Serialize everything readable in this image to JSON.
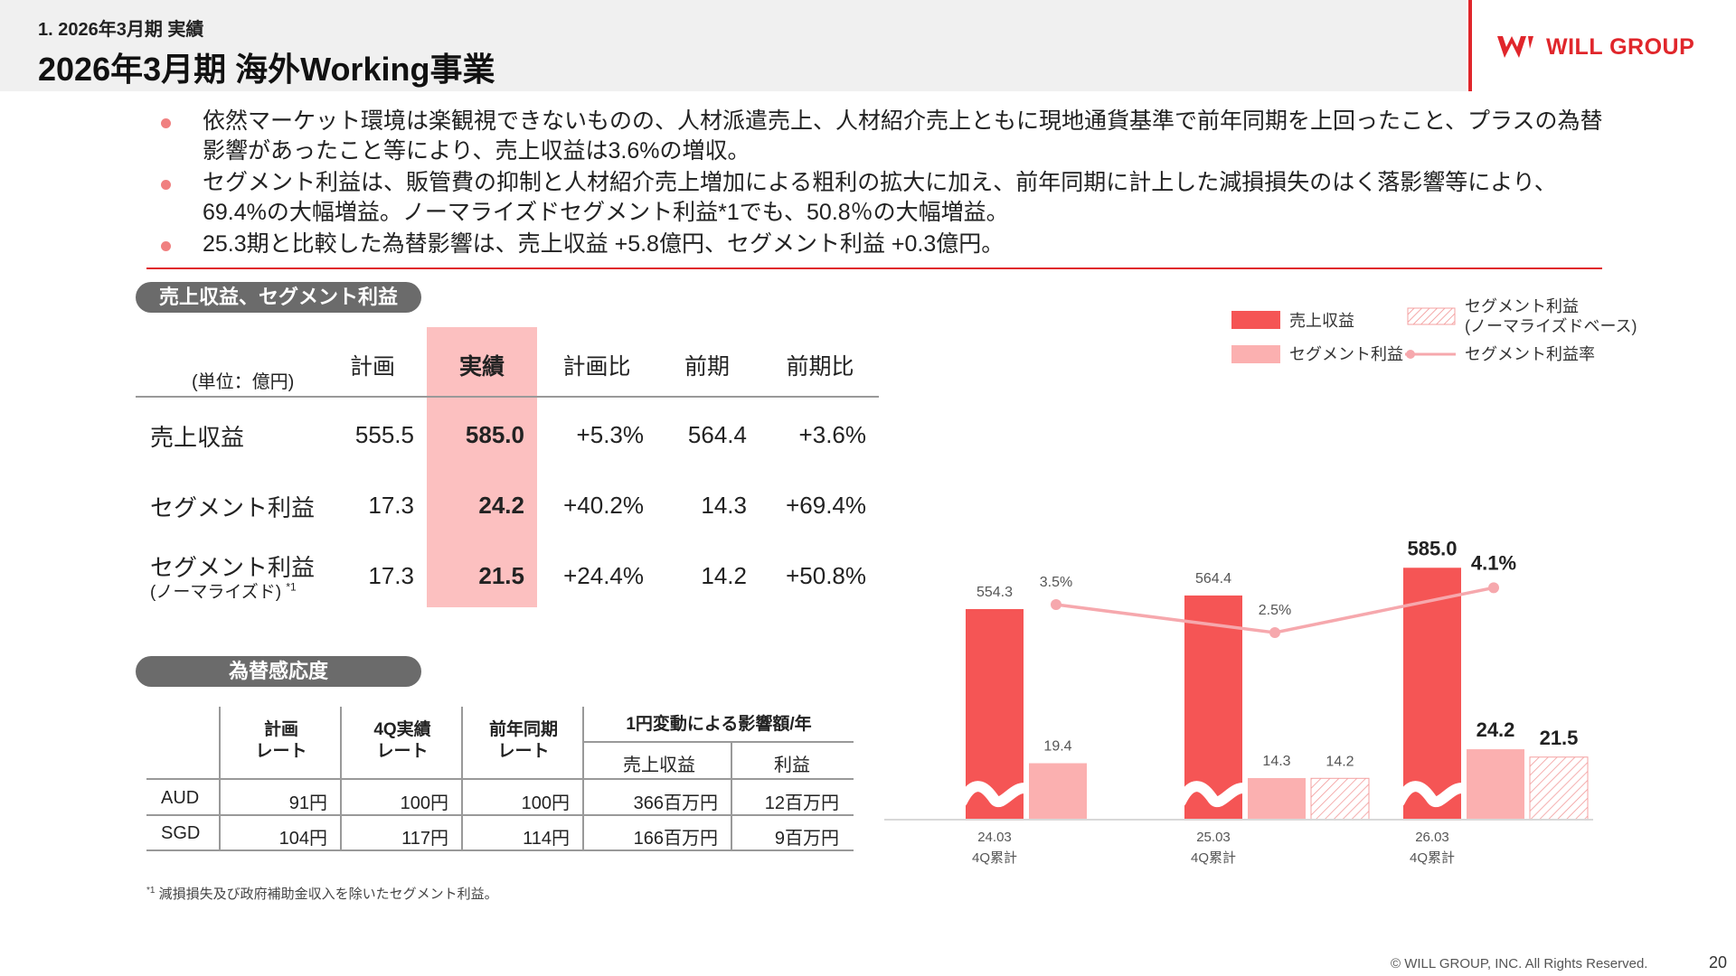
{
  "header": {
    "section": "1. 2026年3月期 実績",
    "title": "2026年3月期 海外Working事業",
    "logo_text": "WILL GROUP"
  },
  "bullets": [
    "依然マーケット環境は楽観視できないものの、人材派遣売上、人材紹介売上ともに現地通貨基準で前年同期を上回ったこと、プラスの為替影響があったこと等により、売上収益は3.6%の増収。",
    "セグメント利益は、販管費の抑制と人材紹介売上増加による粗利の拡大に加え、前年同期に計上した減損損失のはく落影響等により、69.4%の大幅増益。ノーマライズドセグメント利益*1でも、50.8％の大幅増益。",
    "25.3期と比較した為替影響は、売上収益 +5.8億円、セグメント利益 +0.3億円。"
  ],
  "main_table": {
    "pill": "売上収益、セグメント利益",
    "unit": "(単位：億円)",
    "headers": [
      "計画",
      "実績",
      "計画比",
      "前期",
      "前期比"
    ],
    "rows": [
      {
        "label": "売上収益",
        "sub": "",
        "plan": "555.5",
        "actual": "585.0",
        "vs_plan": "+5.3%",
        "prev": "564.4",
        "vs_prev": "+3.6%"
      },
      {
        "label": "セグメント利益",
        "sub": "",
        "plan": "17.3",
        "actual": "24.2",
        "vs_plan": "+40.2%",
        "prev": "14.3",
        "vs_prev": "+69.4%"
      },
      {
        "label": "セグメント利益",
        "sub": "(ノーマライズド)",
        "sub_note": "*1",
        "plan": "17.3",
        "actual": "21.5",
        "vs_plan": "+24.4%",
        "prev": "14.2",
        "vs_prev": "+50.8%"
      }
    ]
  },
  "fx_table": {
    "pill": "為替感応度",
    "headers": {
      "plan_rate": [
        "計画",
        "レート"
      ],
      "q4_rate": [
        "4Q実績",
        "レート"
      ],
      "prev_rate": [
        "前年同期",
        "レート"
      ],
      "impact": "1円変動による影響額/年",
      "revenue": "売上収益",
      "profit": "利益"
    },
    "rows": [
      {
        "currency": "AUD",
        "plan": "91円",
        "q4": "100円",
        "prev": "100円",
        "revenue": "366百万円",
        "profit": "12百万円"
      },
      {
        "currency": "SGD",
        "plan": "104円",
        "q4": "117円",
        "prev": "114円",
        "revenue": "166百万円",
        "profit": "9百万円"
      }
    ]
  },
  "footnote": {
    "mark": "*1",
    "text": "減損損失及び政府補助金収入を除いたセグメント利益。"
  },
  "footer": {
    "copyright": "© WILL GROUP, INC. All Rights Reserved.",
    "page": "20"
  },
  "colors": {
    "accent": "#e0262b",
    "revenue": "#f55555",
    "profit": "#fbb0b0",
    "normalized": "#f7c4c4",
    "margin_line": "#f6a8ad"
  },
  "chart_data": {
    "type": "bar",
    "categories": [
      "24.03\n4Q累計",
      "25.03\n4Q累計",
      "26.03\n4Q累計"
    ],
    "category_lines": [
      [
        "24.03",
        "4Q累計"
      ],
      [
        "25.03",
        "4Q累計"
      ],
      [
        "26.03",
        "4Q累計"
      ]
    ],
    "axis_break": true,
    "series": [
      {
        "name": "売上収益",
        "values": [
          554.3,
          564.4,
          585.0
        ],
        "labels": [
          "554.3",
          "564.4",
          "585.0"
        ]
      },
      {
        "name": "セグメント利益",
        "values": [
          19.4,
          14.3,
          24.2
        ],
        "labels": [
          "19.4",
          "14.3",
          "24.2"
        ]
      },
      {
        "name": "セグメント利益(ノーマライズドベース)",
        "values": [
          null,
          14.2,
          21.5
        ],
        "labels": [
          "",
          "14.2",
          "21.5"
        ]
      },
      {
        "name": "セグメント利益率",
        "type": "line",
        "values": [
          3.5,
          2.5,
          4.1
        ],
        "labels": [
          "3.5%",
          "2.5%",
          "4.1%"
        ]
      }
    ],
    "legend": {
      "revenue": "売上収益",
      "normalized_1": "セグメント利益",
      "normalized_2": "(ノーマライズドベース)",
      "profit": "セグメント利益",
      "margin": "セグメント利益率"
    },
    "legend_position": "top-right",
    "grid": false
  }
}
